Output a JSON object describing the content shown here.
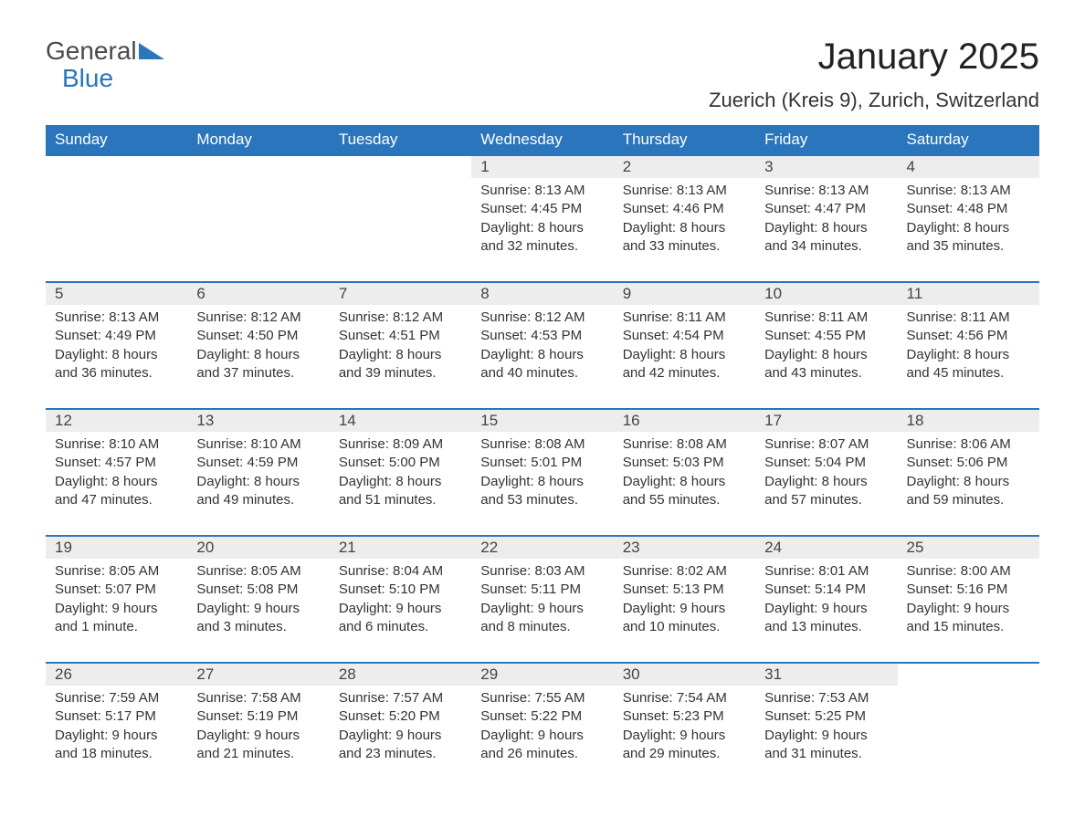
{
  "logo": {
    "text1": "General",
    "text2": "Blue",
    "triangle_color": "#2a75bb"
  },
  "title": "January 2025",
  "location": "Zuerich (Kreis 9), Zurich, Switzerland",
  "colors": {
    "header_bg": "#2a75bb",
    "header_text": "#ffffff",
    "daynum_bg": "#ededed",
    "row_border": "#2a75bb",
    "body_text": "#333333",
    "page_bg": "#ffffff"
  },
  "weekdays": [
    "Sunday",
    "Monday",
    "Tuesday",
    "Wednesday",
    "Thursday",
    "Friday",
    "Saturday"
  ],
  "weeks": [
    [
      null,
      null,
      null,
      {
        "n": "1",
        "sunrise": "8:13 AM",
        "sunset": "4:45 PM",
        "daylight": "8 hours and 32 minutes."
      },
      {
        "n": "2",
        "sunrise": "8:13 AM",
        "sunset": "4:46 PM",
        "daylight": "8 hours and 33 minutes."
      },
      {
        "n": "3",
        "sunrise": "8:13 AM",
        "sunset": "4:47 PM",
        "daylight": "8 hours and 34 minutes."
      },
      {
        "n": "4",
        "sunrise": "8:13 AM",
        "sunset": "4:48 PM",
        "daylight": "8 hours and 35 minutes."
      }
    ],
    [
      {
        "n": "5",
        "sunrise": "8:13 AM",
        "sunset": "4:49 PM",
        "daylight": "8 hours and 36 minutes."
      },
      {
        "n": "6",
        "sunrise": "8:12 AM",
        "sunset": "4:50 PM",
        "daylight": "8 hours and 37 minutes."
      },
      {
        "n": "7",
        "sunrise": "8:12 AM",
        "sunset": "4:51 PM",
        "daylight": "8 hours and 39 minutes."
      },
      {
        "n": "8",
        "sunrise": "8:12 AM",
        "sunset": "4:53 PM",
        "daylight": "8 hours and 40 minutes."
      },
      {
        "n": "9",
        "sunrise": "8:11 AM",
        "sunset": "4:54 PM",
        "daylight": "8 hours and 42 minutes."
      },
      {
        "n": "10",
        "sunrise": "8:11 AM",
        "sunset": "4:55 PM",
        "daylight": "8 hours and 43 minutes."
      },
      {
        "n": "11",
        "sunrise": "8:11 AM",
        "sunset": "4:56 PM",
        "daylight": "8 hours and 45 minutes."
      }
    ],
    [
      {
        "n": "12",
        "sunrise": "8:10 AM",
        "sunset": "4:57 PM",
        "daylight": "8 hours and 47 minutes."
      },
      {
        "n": "13",
        "sunrise": "8:10 AM",
        "sunset": "4:59 PM",
        "daylight": "8 hours and 49 minutes."
      },
      {
        "n": "14",
        "sunrise": "8:09 AM",
        "sunset": "5:00 PM",
        "daylight": "8 hours and 51 minutes."
      },
      {
        "n": "15",
        "sunrise": "8:08 AM",
        "sunset": "5:01 PM",
        "daylight": "8 hours and 53 minutes."
      },
      {
        "n": "16",
        "sunrise": "8:08 AM",
        "sunset": "5:03 PM",
        "daylight": "8 hours and 55 minutes."
      },
      {
        "n": "17",
        "sunrise": "8:07 AM",
        "sunset": "5:04 PM",
        "daylight": "8 hours and 57 minutes."
      },
      {
        "n": "18",
        "sunrise": "8:06 AM",
        "sunset": "5:06 PM",
        "daylight": "8 hours and 59 minutes."
      }
    ],
    [
      {
        "n": "19",
        "sunrise": "8:05 AM",
        "sunset": "5:07 PM",
        "daylight": "9 hours and 1 minute."
      },
      {
        "n": "20",
        "sunrise": "8:05 AM",
        "sunset": "5:08 PM",
        "daylight": "9 hours and 3 minutes."
      },
      {
        "n": "21",
        "sunrise": "8:04 AM",
        "sunset": "5:10 PM",
        "daylight": "9 hours and 6 minutes."
      },
      {
        "n": "22",
        "sunrise": "8:03 AM",
        "sunset": "5:11 PM",
        "daylight": "9 hours and 8 minutes."
      },
      {
        "n": "23",
        "sunrise": "8:02 AM",
        "sunset": "5:13 PM",
        "daylight": "9 hours and 10 minutes."
      },
      {
        "n": "24",
        "sunrise": "8:01 AM",
        "sunset": "5:14 PM",
        "daylight": "9 hours and 13 minutes."
      },
      {
        "n": "25",
        "sunrise": "8:00 AM",
        "sunset": "5:16 PM",
        "daylight": "9 hours and 15 minutes."
      }
    ],
    [
      {
        "n": "26",
        "sunrise": "7:59 AM",
        "sunset": "5:17 PM",
        "daylight": "9 hours and 18 minutes."
      },
      {
        "n": "27",
        "sunrise": "7:58 AM",
        "sunset": "5:19 PM",
        "daylight": "9 hours and 21 minutes."
      },
      {
        "n": "28",
        "sunrise": "7:57 AM",
        "sunset": "5:20 PM",
        "daylight": "9 hours and 23 minutes."
      },
      {
        "n": "29",
        "sunrise": "7:55 AM",
        "sunset": "5:22 PM",
        "daylight": "9 hours and 26 minutes."
      },
      {
        "n": "30",
        "sunrise": "7:54 AM",
        "sunset": "5:23 PM",
        "daylight": "9 hours and 29 minutes."
      },
      {
        "n": "31",
        "sunrise": "7:53 AM",
        "sunset": "5:25 PM",
        "daylight": "9 hours and 31 minutes."
      },
      null
    ]
  ],
  "labels": {
    "sunrise": "Sunrise: ",
    "sunset": "Sunset: ",
    "daylight": "Daylight: "
  }
}
